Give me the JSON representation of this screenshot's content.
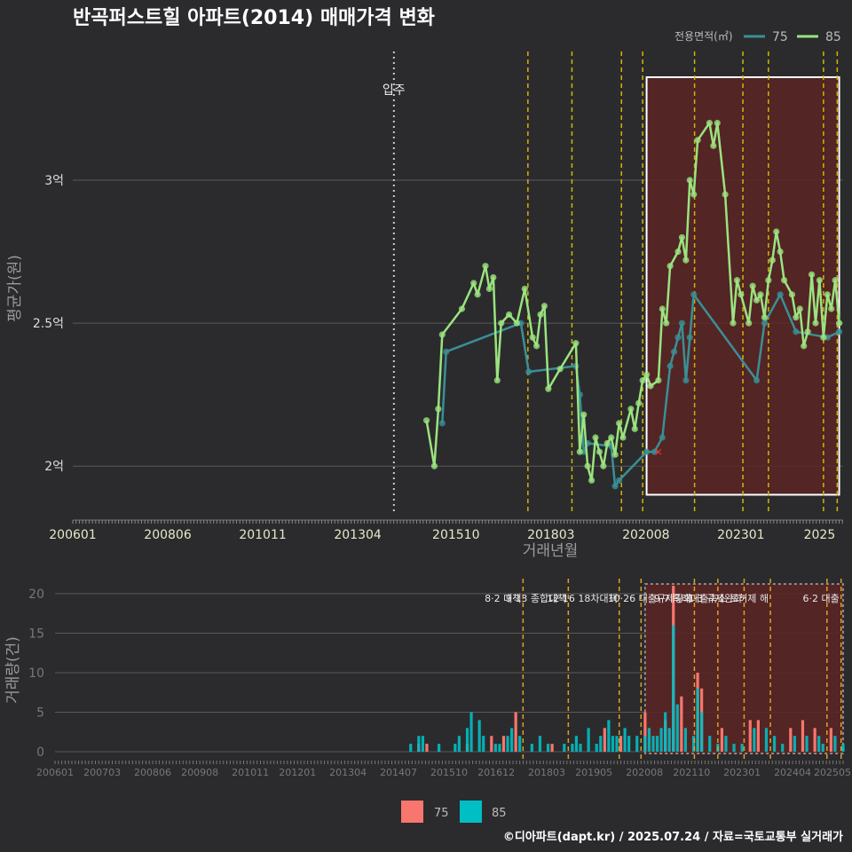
{
  "title": "반곡퍼스트힐 아파트(2014) 매매가격 변화",
  "footer": "©디아파트(dapt.kr) / 2025.07.24 / 자료=국토교통부 실거래가",
  "colors": {
    "s75": "#3a8f96",
    "s85": "#9be37f",
    "bar75": "#f8766d",
    "bar85": "#00bfc4",
    "dashed": "#d4b400",
    "highlight": "#5a2525"
  },
  "legend": {
    "title": "전용면적(㎡)",
    "items": [
      "75",
      "85"
    ]
  },
  "chart_data": [
    {
      "type": "line",
      "name": "price",
      "title": "반곡퍼스트힐 아파트(2014) 매매가격 변화",
      "xlabel": "거래년월",
      "ylabel": "평균가(원)",
      "x_ticks": [
        "200601",
        "200806",
        "201011",
        "201304",
        "201510",
        "201803",
        "202008",
        "202301",
        "2025"
      ],
      "y_ticks": [
        {
          "v": 2.0,
          "label": "2억"
        },
        {
          "v": 2.5,
          "label": "2.5억"
        },
        {
          "v": 3.0,
          "label": "3억"
        }
      ],
      "xlim": [
        2006.0,
        2025.6
      ],
      "ylim": [
        1.83,
        3.45
      ],
      "move_in": {
        "x": 2014.17,
        "label": "입주"
      },
      "policy_lines": [
        2017.58,
        2018.7,
        2019.96,
        2020.5,
        2021.82,
        2023.05,
        2023.7,
        2025.1,
        2025.45
      ],
      "highlight": {
        "from": 2020.6,
        "to": 2025.5,
        "ymin": 1.9,
        "ymax": 3.36
      },
      "red_mark": {
        "x": 2020.9,
        "y": 2.05
      },
      "series": [
        {
          "name": "85",
          "points": [
            [
              2015.0,
              2.16
            ],
            [
              2015.2,
              2.0
            ],
            [
              2015.3,
              2.2
            ],
            [
              2015.4,
              2.46
            ],
            [
              2015.9,
              2.55
            ],
            [
              2016.2,
              2.64
            ],
            [
              2016.3,
              2.6
            ],
            [
              2016.5,
              2.7
            ],
            [
              2016.6,
              2.62
            ],
            [
              2016.7,
              2.66
            ],
            [
              2016.8,
              2.3
            ],
            [
              2016.9,
              2.5
            ],
            [
              2017.1,
              2.53
            ],
            [
              2017.3,
              2.5
            ],
            [
              2017.5,
              2.62
            ],
            [
              2017.7,
              2.45
            ],
            [
              2017.8,
              2.42
            ],
            [
              2017.9,
              2.53
            ],
            [
              2018.0,
              2.56
            ],
            [
              2018.1,
              2.27
            ],
            [
              2018.4,
              2.34
            ],
            [
              2018.8,
              2.43
            ],
            [
              2018.9,
              2.05
            ],
            [
              2019.0,
              2.18
            ],
            [
              2019.1,
              2.0
            ],
            [
              2019.2,
              1.95
            ],
            [
              2019.3,
              2.1
            ],
            [
              2019.4,
              2.05
            ],
            [
              2019.5,
              2.0
            ],
            [
              2019.6,
              2.08
            ],
            [
              2019.7,
              2.1
            ],
            [
              2019.8,
              2.04
            ],
            [
              2019.9,
              2.15
            ],
            [
              2020.0,
              2.1
            ],
            [
              2020.2,
              2.2
            ],
            [
              2020.3,
              2.13
            ],
            [
              2020.4,
              2.22
            ],
            [
              2020.5,
              2.3
            ],
            [
              2020.6,
              2.32
            ],
            [
              2020.7,
              2.28
            ],
            [
              2020.9,
              2.3
            ],
            [
              2021.0,
              2.55
            ],
            [
              2021.1,
              2.5
            ],
            [
              2021.2,
              2.7
            ],
            [
              2021.4,
              2.75
            ],
            [
              2021.5,
              2.8
            ],
            [
              2021.6,
              2.72
            ],
            [
              2021.7,
              3.0
            ],
            [
              2021.8,
              2.95
            ],
            [
              2021.9,
              3.14
            ],
            [
              2022.2,
              3.2
            ],
            [
              2022.3,
              3.12
            ],
            [
              2022.4,
              3.2
            ],
            [
              2022.6,
              2.95
            ],
            [
              2022.8,
              2.5
            ],
            [
              2022.9,
              2.65
            ],
            [
              2023.0,
              2.6
            ],
            [
              2023.2,
              2.5
            ],
            [
              2023.3,
              2.63
            ],
            [
              2023.4,
              2.58
            ],
            [
              2023.5,
              2.6
            ],
            [
              2023.6,
              2.52
            ],
            [
              2023.7,
              2.65
            ],
            [
              2023.8,
              2.72
            ],
            [
              2023.9,
              2.82
            ],
            [
              2024.0,
              2.75
            ],
            [
              2024.1,
              2.65
            ],
            [
              2024.3,
              2.6
            ],
            [
              2024.4,
              2.52
            ],
            [
              2024.5,
              2.55
            ],
            [
              2024.6,
              2.42
            ],
            [
              2024.7,
              2.47
            ],
            [
              2024.8,
              2.67
            ],
            [
              2024.9,
              2.5
            ],
            [
              2025.0,
              2.65
            ],
            [
              2025.1,
              2.45
            ],
            [
              2025.2,
              2.6
            ],
            [
              2025.3,
              2.55
            ],
            [
              2025.4,
              2.65
            ],
            [
              2025.5,
              2.5
            ]
          ]
        },
        {
          "name": "75",
          "points": [
            [
              2015.4,
              2.15
            ],
            [
              2015.5,
              2.4
            ],
            [
              2017.4,
              2.5
            ],
            [
              2017.6,
              2.33
            ],
            [
              2018.8,
              2.35
            ],
            [
              2018.9,
              2.25
            ],
            [
              2019.0,
              2.05
            ],
            [
              2019.1,
              2.08
            ],
            [
              2019.7,
              2.07
            ],
            [
              2019.8,
              1.93
            ],
            [
              2019.9,
              1.95
            ],
            [
              2020.6,
              2.05
            ],
            [
              2020.8,
              2.05
            ],
            [
              2021.0,
              2.1
            ],
            [
              2021.2,
              2.35
            ],
            [
              2021.3,
              2.4
            ],
            [
              2021.4,
              2.45
            ],
            [
              2021.5,
              2.5
            ],
            [
              2021.6,
              2.3
            ],
            [
              2021.7,
              2.45
            ],
            [
              2021.8,
              2.6
            ],
            [
              2023.4,
              2.3
            ],
            [
              2023.6,
              2.5
            ],
            [
              2024.0,
              2.6
            ],
            [
              2024.4,
              2.47
            ],
            [
              2025.2,
              2.45
            ],
            [
              2025.5,
              2.47
            ]
          ]
        }
      ]
    },
    {
      "type": "bar",
      "name": "volume",
      "ylabel": "거래량(건)",
      "y_ticks": [
        0,
        5,
        10,
        15,
        20
      ],
      "ylim": [
        0,
        21
      ],
      "x_ticks": [
        "200601",
        "200703",
        "200806",
        "200908",
        "201011",
        "201201",
        "201304",
        "201407",
        "201510",
        "201612",
        "201803",
        "201905",
        "202008",
        "202110",
        "202301",
        "202404",
        "202505"
      ],
      "policy_lines": [
        {
          "x": 2017.58,
          "label": "8·2 대책"
        },
        {
          "x": 2018.7,
          "label": "9·13 종합대책"
        },
        {
          "x": 2019.96,
          "label": "12·16 18차대책"
        },
        {
          "x": 2020.5,
          "label": ""
        },
        {
          "x": 2021.82,
          "label": "10·26 대출규제강화"
        },
        {
          "x": 2022.4,
          "label": ""
        },
        {
          "x": 2023.05,
          "label": "1·3 규제완화"
        },
        {
          "x": 2023.7,
          "label": "9·7 특례대출축소 토허제 해"
        },
        {
          "x": 2025.1,
          "label": ""
        },
        {
          "x": 2025.45,
          "label": "6·2 대출"
        }
      ],
      "highlight": {
        "from": 2020.6,
        "to": 2025.5
      },
      "series": [
        {
          "name": "75",
          "values": [
            [
              2015.0,
              1
            ],
            [
              2015.2,
              1
            ],
            [
              2016.2,
              1
            ],
            [
              2016.8,
              2
            ],
            [
              2017.1,
              2
            ],
            [
              2017.4,
              5
            ],
            [
              2018.3,
              1
            ],
            [
              2019.6,
              3
            ],
            [
              2020.0,
              2
            ],
            [
              2020.6,
              5
            ],
            [
              2021.1,
              4
            ],
            [
              2021.3,
              21
            ],
            [
              2021.5,
              7
            ],
            [
              2021.9,
              10
            ],
            [
              2022.0,
              8
            ],
            [
              2022.5,
              3
            ],
            [
              2023.2,
              4
            ],
            [
              2023.4,
              4
            ],
            [
              2024.2,
              3
            ],
            [
              2024.5,
              4
            ],
            [
              2024.8,
              3
            ],
            [
              2025.2,
              3
            ]
          ]
        },
        {
          "name": "85",
          "values": [
            [
              2014.8,
              1
            ],
            [
              2015.0,
              2
            ],
            [
              2015.1,
              2
            ],
            [
              2015.5,
              1
            ],
            [
              2015.9,
              1
            ],
            [
              2016.0,
              2
            ],
            [
              2016.2,
              3
            ],
            [
              2016.3,
              5
            ],
            [
              2016.5,
              4
            ],
            [
              2016.6,
              2
            ],
            [
              2016.9,
              1
            ],
            [
              2017.0,
              1
            ],
            [
              2017.2,
              2
            ],
            [
              2017.3,
              3
            ],
            [
              2017.5,
              2
            ],
            [
              2017.8,
              1
            ],
            [
              2018.0,
              2
            ],
            [
              2018.2,
              1
            ],
            [
              2018.6,
              1
            ],
            [
              2018.8,
              1
            ],
            [
              2018.9,
              2
            ],
            [
              2019.0,
              1
            ],
            [
              2019.2,
              3
            ],
            [
              2019.4,
              1
            ],
            [
              2019.5,
              2
            ],
            [
              2019.7,
              4
            ],
            [
              2019.8,
              2
            ],
            [
              2019.9,
              2
            ],
            [
              2020.1,
              3
            ],
            [
              2020.2,
              2
            ],
            [
              2020.4,
              2
            ],
            [
              2020.6,
              2
            ],
            [
              2020.7,
              3
            ],
            [
              2020.8,
              2
            ],
            [
              2020.9,
              2
            ],
            [
              2021.0,
              3
            ],
            [
              2021.1,
              5
            ],
            [
              2021.2,
              3
            ],
            [
              2021.3,
              16
            ],
            [
              2021.4,
              6
            ],
            [
              2021.6,
              3
            ],
            [
              2021.8,
              2
            ],
            [
              2021.9,
              8
            ],
            [
              2022.0,
              5
            ],
            [
              2022.2,
              2
            ],
            [
              2022.4,
              1
            ],
            [
              2022.6,
              2
            ],
            [
              2022.8,
              1
            ],
            [
              2023.0,
              1
            ],
            [
              2023.3,
              3
            ],
            [
              2023.6,
              3
            ],
            [
              2023.8,
              2
            ],
            [
              2024.0,
              1
            ],
            [
              2024.3,
              2
            ],
            [
              2024.6,
              2
            ],
            [
              2024.9,
              2
            ],
            [
              2025.0,
              1
            ],
            [
              2025.3,
              2
            ],
            [
              2025.5,
              1
            ]
          ]
        }
      ]
    }
  ]
}
